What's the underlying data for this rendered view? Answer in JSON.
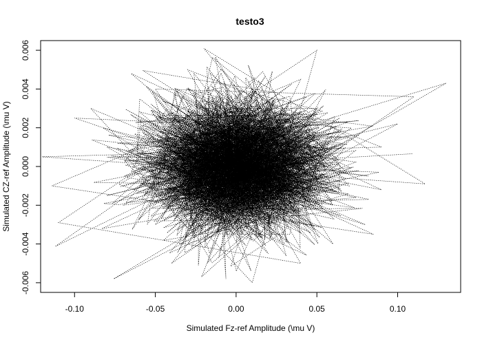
{
  "chart_data": {
    "type": "line",
    "title": "testo3",
    "xlabel": "Simulated Fz-ref Amplitude (\\mu V)",
    "ylabel": "Simulated CZ-ref Amplitude (\\mu V)",
    "xlim": [
      -0.121,
      0.139
    ],
    "ylim": [
      -0.0065,
      0.0065
    ],
    "xticks": [
      -0.1,
      -0.05,
      0.0,
      0.05,
      0.1
    ],
    "xtick_labels": [
      "-0.10",
      "-0.05",
      "0.00",
      "0.05",
      "0.10"
    ],
    "yticks": [
      -0.006,
      -0.004,
      -0.002,
      0.0,
      0.002,
      0.004,
      0.006
    ],
    "ytick_labels": [
      "-0.006",
      "-0.004",
      "-0.002",
      "0.000",
      "0.002",
      "0.004",
      "0.006"
    ],
    "line_style": "dotted",
    "grid": false,
    "legend": "none",
    "series": [
      {
        "color": "#000000",
        "points": [
          [
            0.0,
            0.0
          ],
          [
            -0.02,
            0.001
          ],
          [
            0.03,
            -0.0005
          ],
          [
            -0.04,
            0.002
          ],
          [
            0.05,
            0.001
          ],
          [
            -0.06,
            -0.001
          ],
          [
            0.02,
            0.003
          ],
          [
            -0.01,
            -0.002
          ],
          [
            0.04,
            -0.003
          ],
          [
            -0.03,
            0.004
          ],
          [
            0.06,
            0.002
          ],
          [
            -0.05,
            -0.003
          ],
          [
            0.01,
            0.004
          ],
          [
            0.07,
            -0.001
          ],
          [
            -0.08,
            0.001
          ],
          [
            0.03,
            -0.004
          ],
          [
            -0.02,
            0.003
          ],
          [
            0.05,
            0.003
          ],
          [
            -0.07,
            -0.002
          ],
          [
            0.02,
            -0.001
          ],
          [
            0.13,
            0.0043
          ],
          [
            -0.04,
            0.0
          ],
          [
            0.08,
            -0.003
          ],
          [
            -0.09,
            0.003
          ],
          [
            0.01,
            -0.006
          ],
          [
            0.05,
            0.006
          ],
          [
            -0.11,
            -0.0029
          ],
          [
            0.04,
            -0.005
          ],
          [
            -0.03,
            0.005
          ],
          [
            0.09,
            0.001
          ],
          [
            -0.12,
            0.0005
          ],
          [
            0.117,
            -0.0009
          ],
          [
            -0.02,
            0.0061
          ],
          [
            0.06,
            -0.002
          ],
          [
            -0.1,
            0.0025
          ],
          [
            0.03,
            0.002
          ],
          [
            -0.04,
            -0.005
          ],
          [
            0.11,
            0.0036
          ],
          [
            -0.05,
            0.004
          ],
          [
            0.02,
            -0.0045
          ],
          [
            -0.06,
            0.002
          ],
          [
            0.085,
            -0.0035
          ],
          [
            -0.114,
            -0.001
          ],
          [
            0.04,
            0.0045
          ],
          [
            0.0,
            -0.0025
          ],
          [
            -0.02,
            0.0015
          ],
          [
            0.07,
            0.0015
          ],
          [
            -0.08,
            -0.0015
          ],
          [
            0.1,
            0.0022
          ],
          [
            -0.03,
            -0.0035
          ],
          [
            0.01,
            0.0025
          ],
          [
            0.06,
            -0.004
          ],
          [
            -0.065,
            0.0048
          ],
          [
            0.09,
            -0.0012
          ],
          [
            -0.015,
            0.0005
          ]
        ]
      }
    ]
  }
}
